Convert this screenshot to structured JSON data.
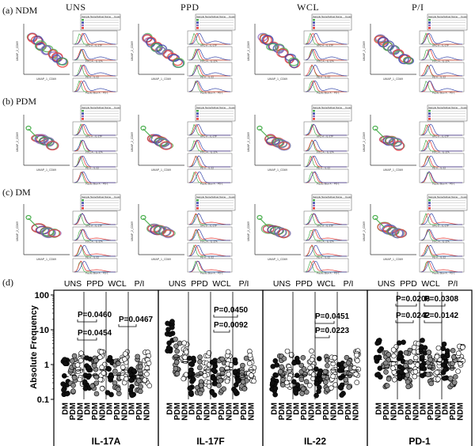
{
  "figure": {
    "top_conditions": [
      "UNS",
      "PPD",
      "WCL",
      "P/I"
    ],
    "rows": [
      {
        "label": "(a)",
        "group": "NDM"
      },
      {
        "label": "(b)",
        "group": "PDM"
      },
      {
        "label": "(c)",
        "group": "DM"
      }
    ],
    "flow_panel": {
      "legend_headers": [
        "Sample Name",
        "Subset Name",
        "Count"
      ],
      "hist_axis_labels": [
        "APC-A :: IL-17F",
        "FITC-A :: IL-17A",
        "PE-A :: IL-22",
        "Pacific Blue-A :: PD-1"
      ],
      "umap_x": "UMAP_1_CD69",
      "umap_y": "UMAP_2_CD69"
    },
    "panel_d": {
      "label": "(d)",
      "conditions": [
        "UNS",
        "PPD",
        "WCL",
        "P/I"
      ],
      "ylabel": "Absolute Frequency",
      "yticks": [
        "100",
        "10",
        "1",
        "0.1"
      ],
      "groups": [
        "DM",
        "PDM",
        "NDM"
      ],
      "markers": [
        "IL-17A",
        "IL-17F",
        "IL-22",
        "PD-1"
      ],
      "pvalues": [
        {
          "marker": 0,
          "text": "P=0.0460"
        },
        {
          "marker": 0,
          "text": "P=0.0454"
        },
        {
          "marker": 0,
          "text": "P=0.0467"
        },
        {
          "marker": 1,
          "text": "P=0.0450"
        },
        {
          "marker": 1,
          "text": "P=0.0092"
        },
        {
          "marker": 2,
          "text": "P=0.0451"
        },
        {
          "marker": 2,
          "text": "P=0.0223"
        },
        {
          "marker": 3,
          "text": "P=0.0206"
        },
        {
          "marker": 3,
          "text": "P=0.0308"
        },
        {
          "marker": 3,
          "text": "P=0.0242"
        },
        {
          "marker": 3,
          "text": "P=0.0142"
        }
      ]
    }
  },
  "colors": {
    "dm": "#111111",
    "pdm": "#8a8a8a",
    "ndm": "#ffffff",
    "flow_green": "#4caf50",
    "flow_red": "#e53935",
    "flow_blue": "#3949ab",
    "flow_purple": "#8e6cc0"
  }
}
